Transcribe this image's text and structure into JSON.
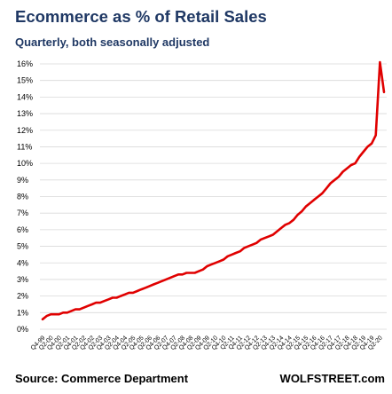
{
  "chart_data": {
    "type": "line",
    "title": "Ecommerce as % of Retail Sales",
    "subtitle": "Quarterly, both seasonally adjusted",
    "source": "Source: Commerce Department",
    "brand": "WOLFSTREET.com",
    "xlabel": "",
    "ylabel": "",
    "ylim": [
      0,
      16
    ],
    "y_ticks": [
      "0%",
      "1%",
      "2%",
      "3%",
      "4%",
      "5%",
      "6%",
      "7%",
      "8%",
      "9%",
      "10%",
      "11%",
      "12%",
      "13%",
      "14%",
      "15%",
      "16%"
    ],
    "x_ticks": [
      "Q4-99",
      "Q2-00",
      "Q4-00",
      "Q2-01",
      "Q4-01",
      "Q2-02",
      "Q4-02",
      "Q2-03",
      "Q4-03",
      "Q2-04",
      "Q4-04",
      "Q2-05",
      "Q4-05",
      "Q2-06",
      "Q4-06",
      "Q2-07",
      "Q4-07",
      "Q2-08",
      "Q4-08",
      "Q2-09",
      "Q4-09",
      "Q2-10",
      "Q4-10",
      "Q2-11",
      "Q4-11",
      "Q2-12",
      "Q4-12",
      "Q2-13",
      "Q4-13",
      "Q2-14",
      "Q4-14",
      "Q2-15",
      "Q4-15",
      "Q2-16",
      "Q4-16",
      "Q2-17",
      "Q4-17",
      "Q2-18",
      "Q4-18",
      "Q2-19",
      "Q4-19",
      "Q2-20"
    ],
    "grid": true,
    "line_color": "#e00000",
    "series": [
      {
        "x": [
          "Q4-99",
          "Q1-00",
          "Q2-00",
          "Q3-00",
          "Q4-00",
          "Q1-01",
          "Q2-01",
          "Q3-01",
          "Q4-01",
          "Q1-02",
          "Q2-02",
          "Q3-02",
          "Q4-02",
          "Q1-03",
          "Q2-03",
          "Q3-03",
          "Q4-03",
          "Q1-04",
          "Q2-04",
          "Q3-04",
          "Q4-04",
          "Q1-05",
          "Q2-05",
          "Q3-05",
          "Q4-05",
          "Q1-06",
          "Q2-06",
          "Q3-06",
          "Q4-06",
          "Q1-07",
          "Q2-07",
          "Q3-07",
          "Q4-07",
          "Q1-08",
          "Q2-08",
          "Q3-08",
          "Q4-08",
          "Q1-09",
          "Q2-09",
          "Q3-09",
          "Q4-09",
          "Q1-10",
          "Q2-10",
          "Q3-10",
          "Q4-10",
          "Q1-11",
          "Q2-11",
          "Q3-11",
          "Q4-11",
          "Q1-12",
          "Q2-12",
          "Q3-12",
          "Q4-12",
          "Q1-13",
          "Q2-13",
          "Q3-13",
          "Q4-13",
          "Q1-14",
          "Q2-14",
          "Q3-14",
          "Q4-14",
          "Q1-15",
          "Q2-15",
          "Q3-15",
          "Q4-15",
          "Q1-16",
          "Q2-16",
          "Q3-16",
          "Q4-16",
          "Q1-17",
          "Q2-17",
          "Q3-17",
          "Q4-17",
          "Q1-18",
          "Q2-18",
          "Q3-18",
          "Q4-18",
          "Q1-19",
          "Q2-19",
          "Q3-19",
          "Q4-19",
          "Q1-20",
          "Q2-20",
          "Q3-20"
        ],
        "values": [
          0.6,
          0.8,
          0.9,
          0.9,
          0.9,
          1.0,
          1.0,
          1.1,
          1.2,
          1.2,
          1.3,
          1.4,
          1.5,
          1.6,
          1.6,
          1.7,
          1.8,
          1.9,
          1.9,
          2.0,
          2.1,
          2.2,
          2.2,
          2.3,
          2.4,
          2.5,
          2.6,
          2.7,
          2.8,
          2.9,
          3.0,
          3.1,
          3.2,
          3.3,
          3.3,
          3.4,
          3.4,
          3.4,
          3.5,
          3.6,
          3.8,
          3.9,
          4.0,
          4.1,
          4.2,
          4.4,
          4.5,
          4.6,
          4.7,
          4.9,
          5.0,
          5.1,
          5.2,
          5.4,
          5.5,
          5.6,
          5.7,
          5.9,
          6.1,
          6.3,
          6.4,
          6.6,
          6.9,
          7.1,
          7.4,
          7.6,
          7.8,
          8.0,
          8.2,
          8.5,
          8.8,
          9.0,
          9.2,
          9.5,
          9.7,
          9.9,
          10.0,
          10.4,
          10.7,
          11.0,
          11.2,
          11.7,
          16.1,
          14.3
        ]
      }
    ]
  }
}
